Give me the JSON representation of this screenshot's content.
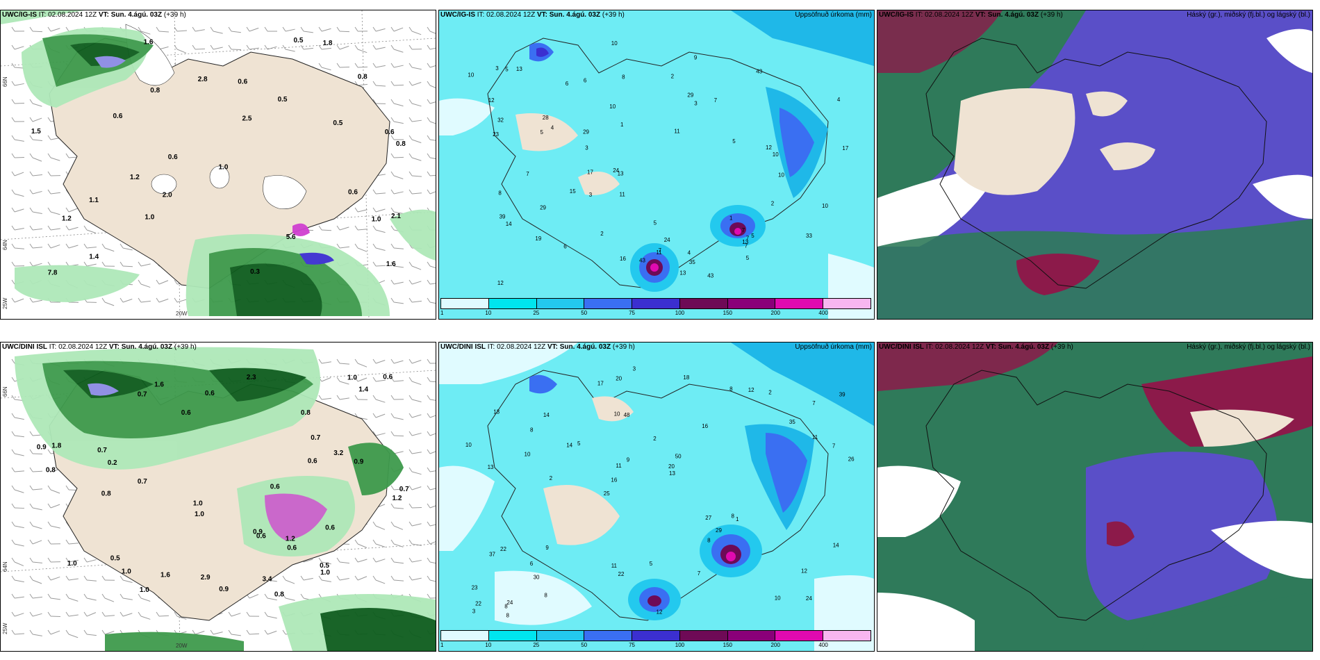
{
  "panels": [
    {
      "model": "UWC/IG-IS",
      "it": "IT: 02.08.2024 12Z",
      "vt_label": "VT:",
      "vt": "Sun. 4.ágú. 03Z",
      "lead": "(+39 h)",
      "right_title": "",
      "lat_labels": [
        "66N",
        "64N",
        "25W"
      ],
      "lon_labels": [
        "20W"
      ],
      "values": [
        "0.8",
        "0.6",
        "0.5",
        "0.8",
        "0.6",
        "2.1",
        "2.0",
        "0.5",
        "1.0",
        "0.8",
        "0.6",
        "0.6",
        "0.5",
        "1.0",
        "1.2",
        "1.0",
        "1.2",
        "1.5",
        "1.6",
        "2.8",
        "1.6",
        "0.6",
        "1.4",
        "1.1",
        "2.5",
        "1.8",
        "7.8",
        "5.6",
        "0.3"
      ]
    },
    {
      "model": "UWC/IG-IS",
      "it": "IT: 02.08.2024 12Z",
      "vt_label": "VT:",
      "vt": "Sun. 4.ágú. 03Z",
      "lead": "(+39 h)",
      "right_title": "Uppsöfnuð úrkoma (mm)",
      "lat_labels": [
        "66N",
        "64N"
      ],
      "values": [
        "16",
        "24",
        "11",
        "10",
        "17",
        "14",
        "7",
        "8",
        "12",
        "28",
        "29",
        "33",
        "43",
        "43",
        "43",
        "35",
        "7",
        "7",
        "10",
        "10",
        "13",
        "10",
        "5",
        "3",
        "4",
        "6",
        "9",
        "13",
        "6",
        "29",
        "3",
        "1",
        "2",
        "5",
        "13",
        "10",
        "5",
        "5",
        "13",
        "15",
        "12",
        "19",
        "17",
        "39",
        "23",
        "29",
        "32",
        "11",
        "10",
        "8",
        "11",
        "12",
        "24",
        "5",
        "4",
        "2",
        "3",
        "1",
        "7",
        "7",
        "5",
        "3",
        "4",
        "6",
        "2",
        "7"
      ]
    },
    {
      "model": "UWC/IG-IS",
      "it": "IT: 02.08.2024 12Z",
      "vt_label": "VT:",
      "vt": "Sun. 4.ágú. 03Z",
      "lead": "(+39 h)",
      "right_title": "Háský (gr.), miðský (fj.bl.) og lágský (bl.)"
    },
    {
      "model": "UWC/DINI ISL",
      "it": "IT: 02.08.2024 12Z",
      "vt_label": "VT:",
      "vt": "Sun. 4.ágú. 03Z",
      "lead": "(+39 h)",
      "right_title": "",
      "lat_labels": [
        "66N",
        "64N",
        "25W"
      ],
      "lon_labels": [
        "20W"
      ],
      "values": [
        "0.8",
        "0.7",
        "0.5",
        "0.7",
        "3.2",
        "3.4",
        "1.2",
        "0.7",
        "1.0",
        "1.0",
        "1.0",
        "0.9",
        "1.0",
        "0.9",
        "0.6",
        "1.0",
        "0.8",
        "1.4",
        "0.6",
        "0.9",
        "0.5",
        "0.6",
        "1.0",
        "1.0",
        "0.6",
        "0.7",
        "0.8",
        "0.2",
        "0.9",
        "0.6",
        "0.6",
        "0.6",
        "0.8",
        "1.6",
        "1.6",
        "2.9",
        "2.3",
        "1.8",
        "0.7",
        "1.2",
        "0.6"
      ]
    },
    {
      "model": "UWC/DINI ISL",
      "it": "IT: 02.08.2024 12Z",
      "vt_label": "VT:",
      "vt": "Sun. 4.ágú. 03Z",
      "lead": "(+39 h)",
      "right_title": "Uppsöfnuð úrkoma (mm)",
      "lat_labels": [
        "66N",
        "64N"
      ],
      "values": [
        "24",
        "13",
        "7",
        "25",
        "16",
        "24",
        "10",
        "2",
        "22",
        "5",
        "23",
        "30",
        "48",
        "50",
        "1",
        "13",
        "20",
        "26",
        "27",
        "11",
        "16",
        "11",
        "11",
        "14",
        "8",
        "9",
        "10",
        "12",
        "8",
        "12",
        "14",
        "10",
        "8",
        "8",
        "7",
        "20",
        "22",
        "22",
        "13",
        "37",
        "35",
        "39",
        "29",
        "7",
        "6",
        "8",
        "3",
        "5",
        "2",
        "3",
        "2",
        "10",
        "8",
        "12",
        "8",
        "18",
        "17",
        "9",
        "14"
      ]
    },
    {
      "model": "UWC/DINI ISL",
      "it": "IT: 02.08.2024 12Z",
      "vt_label": "VT:",
      "vt": "Sun. 4.ágú. 03Z",
      "lead": "(+39 h)",
      "right_title": "Háský (gr.), miðský (fj.bl.) og lágský (bl.)"
    }
  ],
  "colorbar": {
    "labels": [
      "1",
      "10",
      "25",
      "50",
      "75",
      "100",
      "150",
      "200",
      "400"
    ],
    "colors": [
      "#e0fbff",
      "#00e5ee",
      "#23c9ee",
      "#3a6ff2",
      "#3b2fd0",
      "#6e0a56",
      "#8a0079",
      "#e00ab0",
      "#f8b6f0"
    ]
  },
  "colors": {
    "land": "#efe3d3",
    "sea": "#ffffff",
    "precip_light": "#aee8b8",
    "precip_mid": "#3e9a4c",
    "precip_dark": "#0d5c1d",
    "accum_base": "#6eecf4",
    "accum_mid": "#1fb8e8",
    "high_cloud": "#2f7a5a",
    "mid_cloud": "#5a4fc8",
    "low_cloud": "#8c1a4a"
  }
}
